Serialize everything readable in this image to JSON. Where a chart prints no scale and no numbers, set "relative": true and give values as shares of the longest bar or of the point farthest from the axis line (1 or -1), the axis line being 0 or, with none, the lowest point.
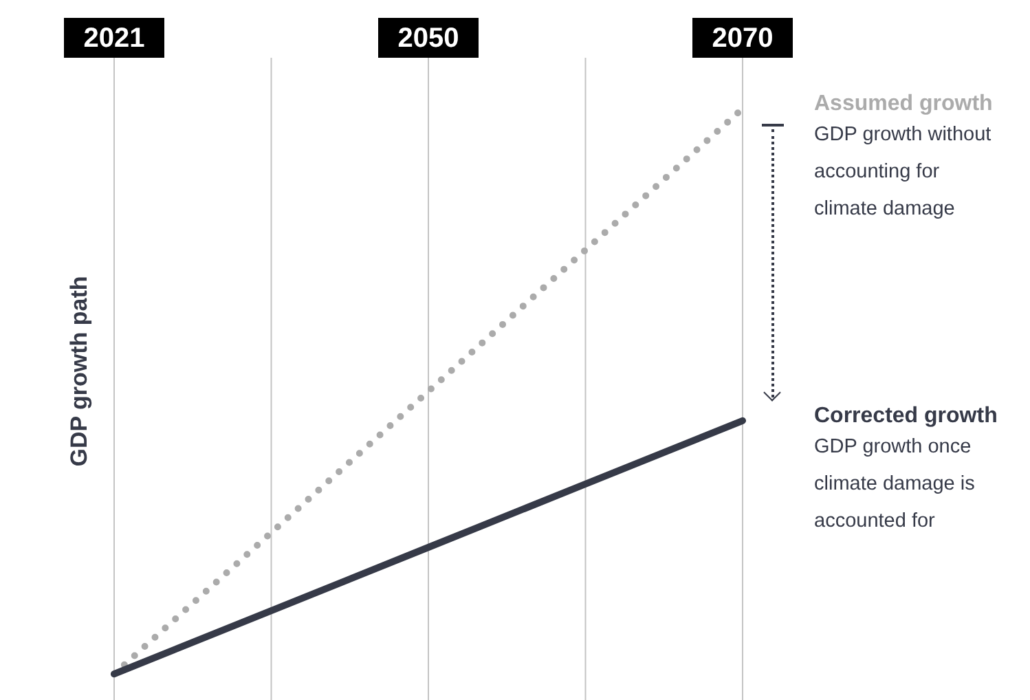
{
  "chart_data": {
    "type": "line",
    "relative": true,
    "ylabel": "GDP growth path",
    "categories": [
      "2021",
      null,
      "2050",
      null,
      "2070"
    ],
    "series": [
      {
        "name": "Assumed growth",
        "color": "#ababab",
        "line_style": "dotted",
        "values": [
          0,
          0.25,
          0.5,
          0.75,
          1
        ]
      },
      {
        "name": "Corrected growth",
        "color": "#363a48",
        "line_style": "solid",
        "values": [
          0,
          0.112,
          0.224,
          0.336,
          0.448
        ]
      }
    ],
    "annotations": [
      "GDP growth without accounting for climate damage",
      "GDP growth once climate damage is accounted for"
    ],
    "grid": "x",
    "marker": "none",
    "legend": "right"
  }
}
